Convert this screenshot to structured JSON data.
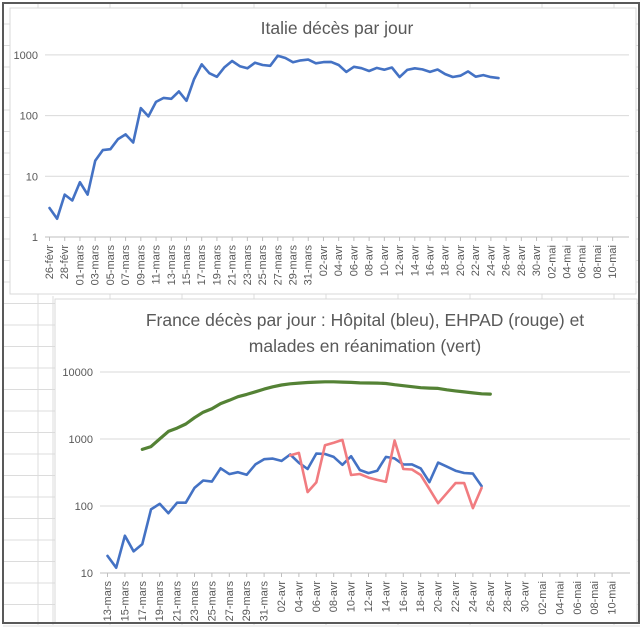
{
  "app": {
    "kind": "spreadsheet with two embedded charts",
    "background": "#ffffff",
    "outer_border_color": "#595959",
    "sheet_grid_color": "#dcdcdc",
    "chart_border_color": "#d9d9d9",
    "plot_gridline_color": "#d9d9d9",
    "axis_line_color": "#bfbfbf",
    "text_color": "#595959"
  },
  "chart_data": [
    {
      "type": "line",
      "title": "Italie décès par jour",
      "y_scale": "log",
      "ylim": [
        1,
        1000
      ],
      "y_ticks": [
        "1",
        "10",
        "100",
        "1000"
      ],
      "grid": true,
      "legend": "none",
      "x_label_rotation": -90,
      "label_every_days": 2,
      "n_days": 75,
      "x_labels": [
        "26-févr",
        "28-févr",
        "01-mars",
        "03-mars",
        "05-mars",
        "07-mars",
        "09-mars",
        "11-mars",
        "13-mars",
        "15-mars",
        "17-mars",
        "19-mars",
        "21-mars",
        "23-mars",
        "25-mars",
        "27-mars",
        "29-mars",
        "31-mars",
        "02-avr",
        "04-avr",
        "06-avr",
        "08-avr",
        "10-avr",
        "12-avr",
        "14-avr",
        "16-avr",
        "18-avr",
        "20-avr",
        "22-avr",
        "24-avr",
        "26-avr",
        "28-avr",
        "30-avr",
        "02-mai",
        "04-mai",
        "06-mai",
        "08-mai",
        "10-mai"
      ],
      "series": [
        {
          "name": "Italie décès par jour",
          "color": "#4472C4",
          "stroke_width": 2.6,
          "start_day": 0,
          "first_date": "26-févr",
          "last_date": "25-avr",
          "values": [
            3,
            2,
            5,
            4,
            8,
            5,
            18,
            27,
            28,
            41,
            49,
            36,
            133,
            97,
            168,
            196,
            189,
            250,
            175,
            400,
            700,
            500,
            435,
            627,
            793,
            651,
            601,
            743,
            683,
            662,
            969,
            889,
            756,
            812,
            837,
            727,
            760,
            766,
            681,
            525,
            636,
            604,
            542,
            610,
            570,
            619,
            431,
            566,
            602,
            578,
            525,
            575,
            482,
            433,
            454,
            534,
            437,
            464,
            430,
            415
          ]
        }
      ]
    },
    {
      "type": "line",
      "title": "France décès par jour : Hôpital  (bleu),  EHPAD (rouge) et malades en réanimation (vert)",
      "title_lines": [
        "France décès par jour : Hôpital  (bleu),  EHPAD (rouge) et",
        "malades en réanimation (vert)"
      ],
      "y_scale": "log",
      "ylim": [
        10,
        10000
      ],
      "y_ticks": [
        "10",
        "100",
        "1000",
        "10000"
      ],
      "grid": true,
      "legend": "none",
      "x_label_rotation": -90,
      "label_every_days": 2,
      "n_days": 59,
      "x_labels": [
        "13-mars",
        "15-mars",
        "17-mars",
        "19-mars",
        "21-mars",
        "23-mars",
        "25-mars",
        "27-mars",
        "29-mars",
        "31-mars",
        "02-avr",
        "04-avr",
        "06-avr",
        "08-avr",
        "10-avr",
        "12-avr",
        "14-avr",
        "16-avr",
        "18-avr",
        "20-avr",
        "22-avr",
        "24-avr",
        "26-avr",
        "28-avr",
        "30-avr",
        "02-mai",
        "04-mai",
        "06-mai",
        "08-mai",
        "10-mai"
      ],
      "series": [
        {
          "name": "Hôpital (bleu)",
          "color": "#4472C4",
          "stroke_width": 2.6,
          "start_day": 0,
          "first_date": "13-mars",
          "last_date": "25-avr",
          "values": [
            18,
            12,
            36,
            21,
            27,
            89,
            108,
            78,
            112,
            112,
            186,
            240,
            231,
            365,
            299,
            319,
            292,
            418,
            499,
            509,
            471,
            588,
            441,
            357,
            605,
            597,
            541,
            412,
            554,
            345,
            310,
            335,
            541,
            514,
            417,
            418,
            364,
            227,
            444,
            387,
            336,
            311,
            305,
            198
          ]
        },
        {
          "name": "EHPAD (rouge)",
          "color": "#F17C80",
          "stroke_width": 2.6,
          "start_day": 21,
          "first_date": "03-avr",
          "last_date": "25-avr",
          "values": [
            570,
            620,
            161,
            225,
            808,
            881,
            970,
            290,
            300,
            265,
            245,
            230,
            950,
            357,
            350,
            290,
            180,
            110,
            155,
            220,
            220,
            93,
            186
          ]
        },
        {
          "name": "Malades en réanimation (vert)",
          "color": "#548235",
          "stroke_width": 3.2,
          "start_day": 4,
          "first_date": "17-mars",
          "last_date": "26-avr",
          "values": [
            699,
            771,
            1002,
            1297,
            1453,
            1674,
            2080,
            2516,
            2827,
            3375,
            3787,
            4273,
            4632,
            5056,
            5565,
            6017,
            6399,
            6662,
            6838,
            6978,
            7072,
            7131,
            7148,
            7066,
            7004,
            6883,
            6845,
            6821,
            6730,
            6457,
            6248,
            6027,
            5833,
            5744,
            5683,
            5433,
            5218,
            5053,
            4870,
            4725,
            4682
          ]
        }
      ]
    }
  ]
}
